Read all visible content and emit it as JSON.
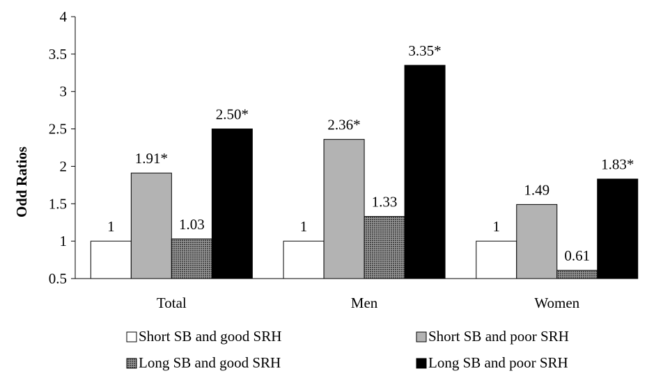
{
  "chart_data": {
    "type": "bar",
    "title": "",
    "xlabel": "",
    "ylabel": "Odd Ratios",
    "ylim": [
      0.5,
      4
    ],
    "yticks": [
      "0.5",
      "1",
      "1.5",
      "2",
      "2.5",
      "3",
      "3.5",
      "4"
    ],
    "grid": false,
    "legend_position": "bottom",
    "categories": [
      "Total",
      "Men",
      "Women"
    ],
    "series": [
      {
        "name": "Short SB and good SRH",
        "values": [
          1,
          1,
          1
        ],
        "labels": [
          "1",
          "1",
          "1"
        ],
        "fill": "#ffffff",
        "pattern": "none"
      },
      {
        "name": "Short SB and poor SRH",
        "values": [
          1.91,
          2.36,
          1.49
        ],
        "labels": [
          "1.91*",
          "2.36*",
          "1.49"
        ],
        "fill": "#b3b3b3",
        "pattern": "none"
      },
      {
        "name": "Long SB and good SRH",
        "values": [
          1.03,
          1.33,
          0.61
        ],
        "labels": [
          "1.03",
          "1.33",
          "0.61"
        ],
        "fill": "#6e6e6e",
        "pattern": "dotted-grid"
      },
      {
        "name": "Long SB and poor SRH",
        "values": [
          2.5,
          3.35,
          1.83
        ],
        "labels": [
          "2.50*",
          "3.35*",
          "1.83*"
        ],
        "fill": "#000000",
        "pattern": "none"
      }
    ]
  }
}
